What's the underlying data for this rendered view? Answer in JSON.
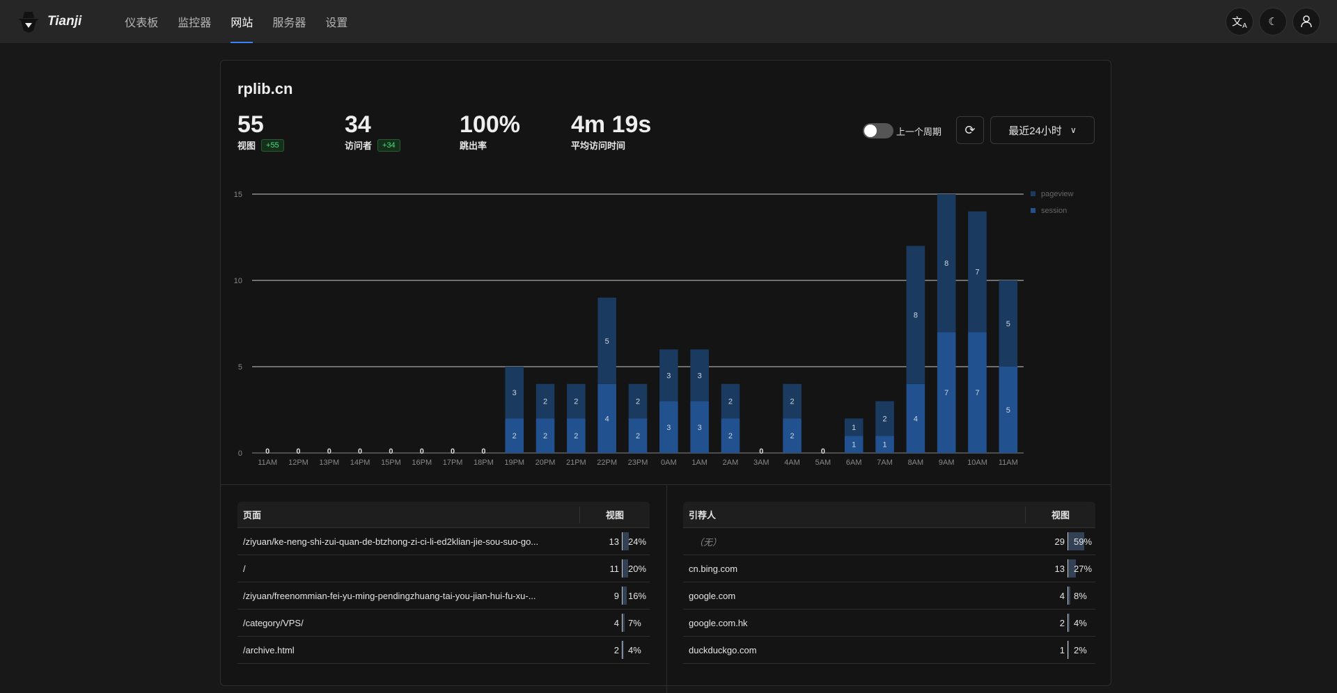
{
  "header": {
    "brand": "Tianji",
    "nav": [
      {
        "label": "仪表板",
        "active": false
      },
      {
        "label": "监控器",
        "active": false
      },
      {
        "label": "网站",
        "active": true
      },
      {
        "label": "服务器",
        "active": false
      },
      {
        "label": "设置",
        "active": false
      }
    ],
    "icons": [
      "translate-icon",
      "moon-icon",
      "user-icon"
    ]
  },
  "site": {
    "name": "rplib.cn",
    "stats": [
      {
        "value": "55",
        "label": "视图",
        "delta": "+55"
      },
      {
        "value": "34",
        "label": "访问者",
        "delta": "+34"
      },
      {
        "value": "100%",
        "label": "跳出率"
      },
      {
        "value": "4m 19s",
        "label": "平均访问时间"
      }
    ],
    "compare_label": "上一个周期",
    "compare_on": false,
    "range": "最近24小时"
  },
  "chart_data": {
    "type": "bar",
    "stacked": true,
    "categories": [
      "11AM",
      "12PM",
      "13PM",
      "14PM",
      "15PM",
      "16PM",
      "17PM",
      "18PM",
      "19PM",
      "20PM",
      "21PM",
      "22PM",
      "23PM",
      "0AM",
      "1AM",
      "2AM",
      "3AM",
      "4AM",
      "5AM",
      "6AM",
      "7AM",
      "8AM",
      "9AM",
      "10AM",
      "11AM"
    ],
    "series": [
      {
        "name": "session",
        "color": "#22518f",
        "values": [
          0,
          0,
          0,
          0,
          0,
          0,
          0,
          0,
          2,
          2,
          2,
          4,
          2,
          3,
          3,
          2,
          0,
          2,
          0,
          1,
          1,
          4,
          7,
          7,
          5
        ]
      },
      {
        "name": "pageview",
        "color": "#1b3a60",
        "values": [
          0,
          0,
          0,
          0,
          0,
          0,
          0,
          0,
          3,
          2,
          2,
          5,
          2,
          3,
          3,
          2,
          0,
          2,
          0,
          1,
          2,
          8,
          8,
          7,
          5
        ]
      }
    ],
    "legend": [
      "pageview",
      "session"
    ],
    "legend_position": "top-right",
    "yticks": [
      "0",
      "5",
      "10",
      "15"
    ],
    "ylim": [
      0,
      15
    ],
    "grid": true
  },
  "pages": {
    "header": "页面",
    "count_header": "视图",
    "rows": [
      {
        "label": "/ziyuan/ke-neng-shi-zui-quan-de-btzhong-zi-ci-li-ed2klian-jie-sou-suo-go...",
        "count": "13",
        "pct": "24%",
        "frac": 0.24
      },
      {
        "label": "/",
        "count": "11",
        "pct": "20%",
        "frac": 0.2
      },
      {
        "label": "/ziyuan/freenommian-fei-yu-ming-pendingzhuang-tai-you-jian-hui-fu-xu-...",
        "count": "9",
        "pct": "16%",
        "frac": 0.16
      },
      {
        "label": "/category/VPS/",
        "count": "4",
        "pct": "7%",
        "frac": 0.07
      },
      {
        "label": "/archive.html",
        "count": "2",
        "pct": "4%",
        "frac": 0.04
      }
    ]
  },
  "referrers": {
    "header": "引荐人",
    "count_header": "视图",
    "rows": [
      {
        "label": "（无）",
        "count": "29",
        "pct": "59%",
        "frac": 0.59,
        "muted": true
      },
      {
        "label": "cn.bing.com",
        "count": "13",
        "pct": "27%",
        "frac": 0.27
      },
      {
        "label": "google.com",
        "count": "4",
        "pct": "8%",
        "frac": 0.08
      },
      {
        "label": "google.com.hk",
        "count": "2",
        "pct": "4%",
        "frac": 0.04
      },
      {
        "label": "duckduckgo.com",
        "count": "1",
        "pct": "2%",
        "frac": 0.02
      }
    ]
  }
}
